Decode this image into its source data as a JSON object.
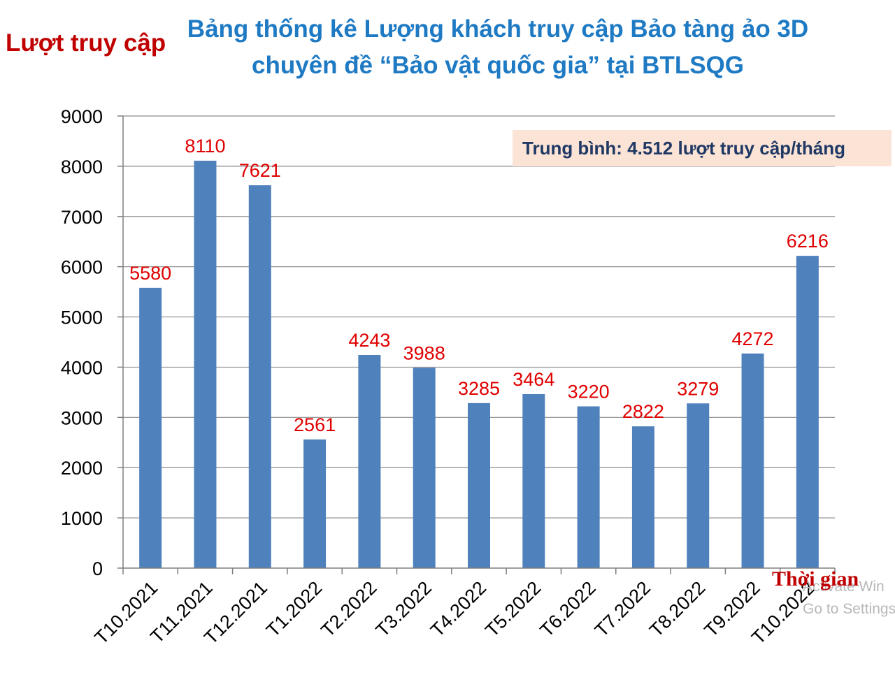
{
  "chart_data": {
    "type": "bar",
    "title": "Bảng thống kê Lượng khách truy cập Bảo tàng ảo 3D chuyên đề “Bảo vật quốc gia” tại BTLSQG",
    "ylabel": "Lượt truy cập",
    "xlabel": "Thời gian",
    "annotation": "Trung bình: 4.512 lượt truy cập/tháng",
    "categories": [
      "T10.2021",
      "T11.2021",
      "T12.2021",
      "T1.2022",
      "T2.2022",
      "T3.2022",
      "T4.2022",
      "T5.2022",
      "T6.2022",
      "T7.2022",
      "T8.2022",
      "T9.2022",
      "T10.2022"
    ],
    "values": [
      5580,
      8110,
      7621,
      2561,
      4243,
      3988,
      3285,
      3464,
      3220,
      2822,
      3279,
      4272,
      6216
    ],
    "ylim": [
      0,
      9000
    ],
    "yticks": [
      0,
      1000,
      2000,
      3000,
      4000,
      5000,
      6000,
      7000,
      8000,
      9000
    ],
    "grid": true,
    "colors": {
      "bar": "#4f81bd",
      "data_label": "#e00000",
      "title": "#1f7ac4",
      "axis_title": "#c00000"
    }
  },
  "watermark": {
    "line1": "Activate Win",
    "line2": "Go to Settings to"
  }
}
